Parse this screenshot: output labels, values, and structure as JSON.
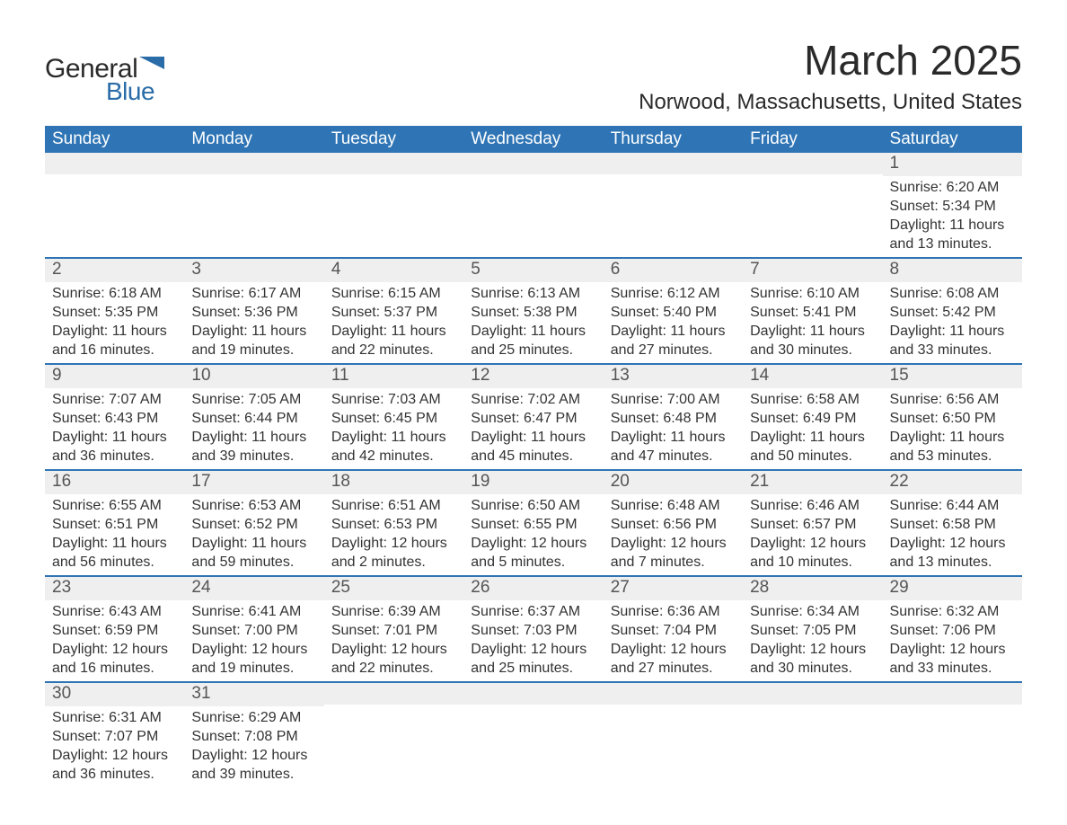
{
  "logo": {
    "word1": "General",
    "word2": "Blue",
    "flag_color": "#2a6ca8"
  },
  "title": {
    "month_year": "March 2025",
    "location": "Norwood, Massachusetts, United States"
  },
  "colors": {
    "header_bg": "#2f75b5",
    "header_text": "#ffffff",
    "daynum_bg": "#efefef",
    "daynum_text": "#555555",
    "body_text": "#333333",
    "row_border": "#2f75b5"
  },
  "weekdays": [
    "Sunday",
    "Monday",
    "Tuesday",
    "Wednesday",
    "Thursday",
    "Friday",
    "Saturday"
  ],
  "weeks": [
    [
      null,
      null,
      null,
      null,
      null,
      null,
      {
        "n": "1",
        "sunrise": "6:20 AM",
        "sunset": "5:34 PM",
        "daylight": "11 hours and 13 minutes."
      }
    ],
    [
      {
        "n": "2",
        "sunrise": "6:18 AM",
        "sunset": "5:35 PM",
        "daylight": "11 hours and 16 minutes."
      },
      {
        "n": "3",
        "sunrise": "6:17 AM",
        "sunset": "5:36 PM",
        "daylight": "11 hours and 19 minutes."
      },
      {
        "n": "4",
        "sunrise": "6:15 AM",
        "sunset": "5:37 PM",
        "daylight": "11 hours and 22 minutes."
      },
      {
        "n": "5",
        "sunrise": "6:13 AM",
        "sunset": "5:38 PM",
        "daylight": "11 hours and 25 minutes."
      },
      {
        "n": "6",
        "sunrise": "6:12 AM",
        "sunset": "5:40 PM",
        "daylight": "11 hours and 27 minutes."
      },
      {
        "n": "7",
        "sunrise": "6:10 AM",
        "sunset": "5:41 PM",
        "daylight": "11 hours and 30 minutes."
      },
      {
        "n": "8",
        "sunrise": "6:08 AM",
        "sunset": "5:42 PM",
        "daylight": "11 hours and 33 minutes."
      }
    ],
    [
      {
        "n": "9",
        "sunrise": "7:07 AM",
        "sunset": "6:43 PM",
        "daylight": "11 hours and 36 minutes."
      },
      {
        "n": "10",
        "sunrise": "7:05 AM",
        "sunset": "6:44 PM",
        "daylight": "11 hours and 39 minutes."
      },
      {
        "n": "11",
        "sunrise": "7:03 AM",
        "sunset": "6:45 PM",
        "daylight": "11 hours and 42 minutes."
      },
      {
        "n": "12",
        "sunrise": "7:02 AM",
        "sunset": "6:47 PM",
        "daylight": "11 hours and 45 minutes."
      },
      {
        "n": "13",
        "sunrise": "7:00 AM",
        "sunset": "6:48 PM",
        "daylight": "11 hours and 47 minutes."
      },
      {
        "n": "14",
        "sunrise": "6:58 AM",
        "sunset": "6:49 PM",
        "daylight": "11 hours and 50 minutes."
      },
      {
        "n": "15",
        "sunrise": "6:56 AM",
        "sunset": "6:50 PM",
        "daylight": "11 hours and 53 minutes."
      }
    ],
    [
      {
        "n": "16",
        "sunrise": "6:55 AM",
        "sunset": "6:51 PM",
        "daylight": "11 hours and 56 minutes."
      },
      {
        "n": "17",
        "sunrise": "6:53 AM",
        "sunset": "6:52 PM",
        "daylight": "11 hours and 59 minutes."
      },
      {
        "n": "18",
        "sunrise": "6:51 AM",
        "sunset": "6:53 PM",
        "daylight": "12 hours and 2 minutes."
      },
      {
        "n": "19",
        "sunrise": "6:50 AM",
        "sunset": "6:55 PM",
        "daylight": "12 hours and 5 minutes."
      },
      {
        "n": "20",
        "sunrise": "6:48 AM",
        "sunset": "6:56 PM",
        "daylight": "12 hours and 7 minutes."
      },
      {
        "n": "21",
        "sunrise": "6:46 AM",
        "sunset": "6:57 PM",
        "daylight": "12 hours and 10 minutes."
      },
      {
        "n": "22",
        "sunrise": "6:44 AM",
        "sunset": "6:58 PM",
        "daylight": "12 hours and 13 minutes."
      }
    ],
    [
      {
        "n": "23",
        "sunrise": "6:43 AM",
        "sunset": "6:59 PM",
        "daylight": "12 hours and 16 minutes."
      },
      {
        "n": "24",
        "sunrise": "6:41 AM",
        "sunset": "7:00 PM",
        "daylight": "12 hours and 19 minutes."
      },
      {
        "n": "25",
        "sunrise": "6:39 AM",
        "sunset": "7:01 PM",
        "daylight": "12 hours and 22 minutes."
      },
      {
        "n": "26",
        "sunrise": "6:37 AM",
        "sunset": "7:03 PM",
        "daylight": "12 hours and 25 minutes."
      },
      {
        "n": "27",
        "sunrise": "6:36 AM",
        "sunset": "7:04 PM",
        "daylight": "12 hours and 27 minutes."
      },
      {
        "n": "28",
        "sunrise": "6:34 AM",
        "sunset": "7:05 PM",
        "daylight": "12 hours and 30 minutes."
      },
      {
        "n": "29",
        "sunrise": "6:32 AM",
        "sunset": "7:06 PM",
        "daylight": "12 hours and 33 minutes."
      }
    ],
    [
      {
        "n": "30",
        "sunrise": "6:31 AM",
        "sunset": "7:07 PM",
        "daylight": "12 hours and 36 minutes."
      },
      {
        "n": "31",
        "sunrise": "6:29 AM",
        "sunset": "7:08 PM",
        "daylight": "12 hours and 39 minutes."
      },
      null,
      null,
      null,
      null,
      null
    ]
  ],
  "labels": {
    "sunrise_prefix": "Sunrise: ",
    "sunset_prefix": "Sunset: ",
    "daylight_prefix": "Daylight: "
  }
}
